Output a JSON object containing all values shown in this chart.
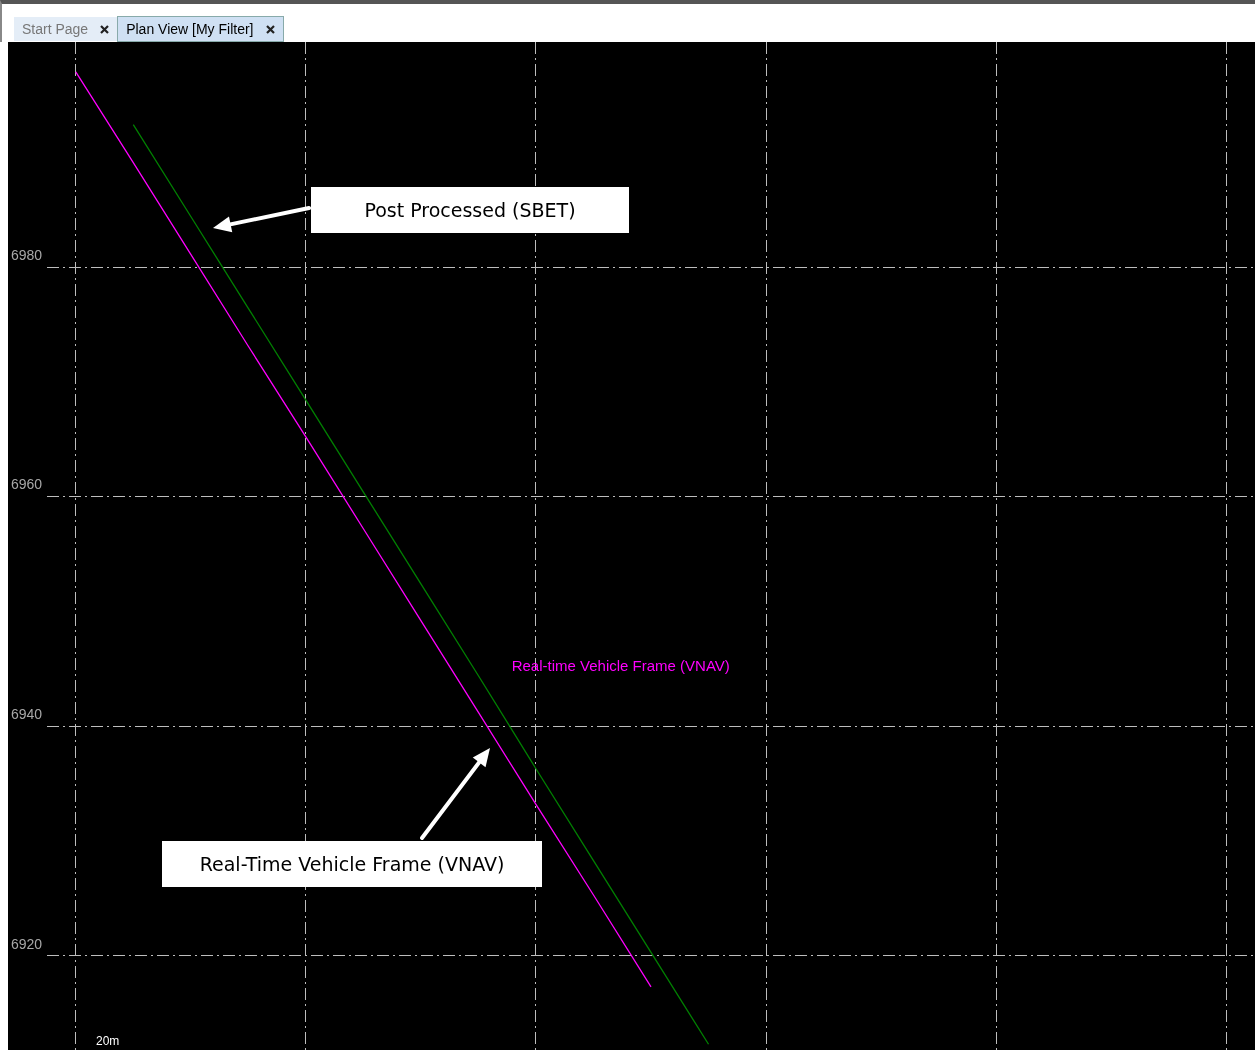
{
  "chart_data": {
    "type": "line",
    "title": "Plan View [My Filter]",
    "categories": [
      null,
      null,
      null,
      null,
      null,
      null,
      null,
      null,
      null,
      null,
      null,
      null,
      null,
      null,
      null,
      null,
      null,
      null,
      null,
      null,
      null
    ],
    "series": [
      {
        "name": "Real-time Vehicle Frame (VNAV)",
        "color": "#ff00ff",
        "values": [
          6997.0,
          6989.1,
          6981.1,
          6973.1,
          6965.2,
          6957.2,
          6949.2,
          6941.2,
          6933.2,
          6925.3,
          6917.3,
          null,
          null,
          null,
          null,
          null,
          null,
          null,
          null,
          null,
          null
        ]
      },
      {
        "color": "#008000",
        "values": [
          null,
          6992.4,
          6984.4,
          6976.4,
          6968.4,
          6960.4,
          6952.4,
          6944.4,
          6936.3,
          6928.3,
          6920.3,
          6912.3,
          null,
          null,
          null,
          null,
          null,
          null,
          null,
          null,
          null
        ]
      }
    ],
    "ylim": [
      6911.8,
      6999.6
    ],
    "yticks": [
      6920,
      6940,
      6960,
      6980
    ],
    "tick_labels": "y",
    "grid": true,
    "legend": false,
    "marker": "none",
    "line_style": "solid",
    "annotations": [
      "Post Processed (SBET)",
      "Real-Time Vehicle Frame (VNAV)",
      "Start Page",
      "20m"
    ]
  }
}
